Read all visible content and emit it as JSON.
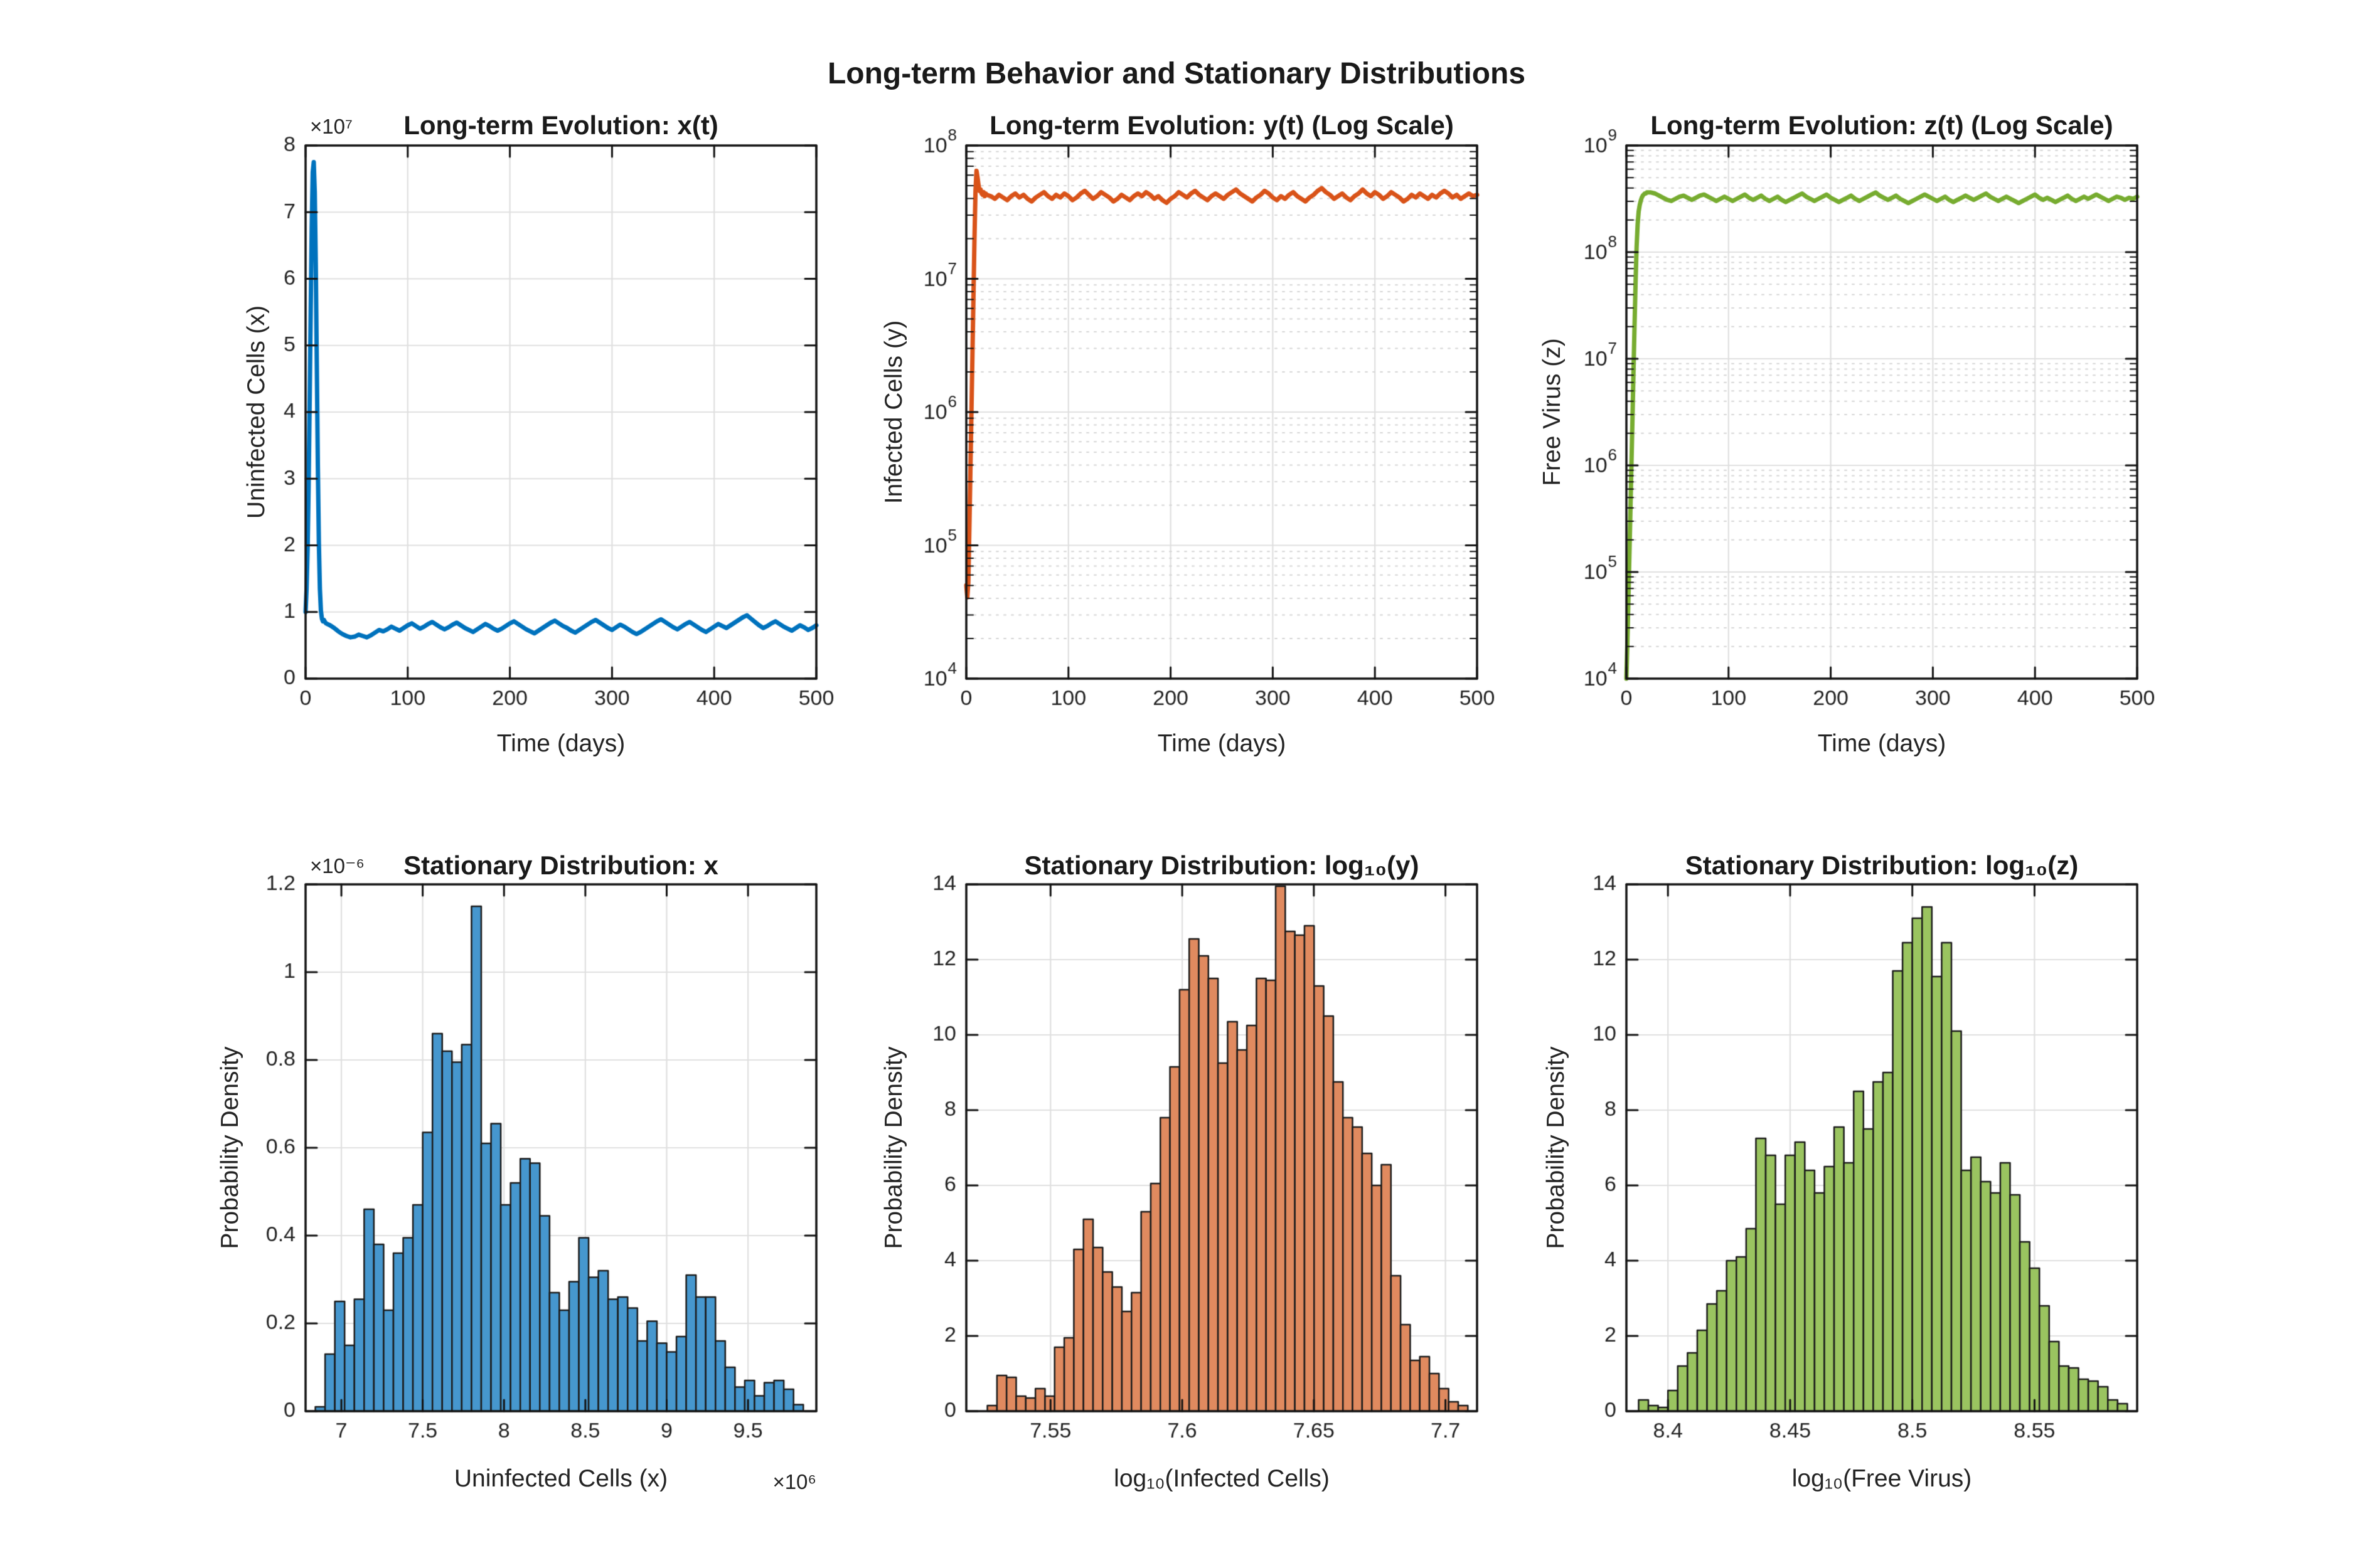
{
  "figure": {
    "title": "Long-term Behavior and Stationary Distributions",
    "background": "#FFFFFF"
  },
  "palette": {
    "blue": "#0072BD",
    "orange": "#D95319",
    "green": "#77AC30",
    "blue_fill": "#4697CE",
    "orange_fill": "#E08A5F",
    "green_fill": "#9AC460",
    "edge": "#1C1C1C",
    "grid": "#E0E0E0",
    "grid_minor": "#D6D6D6",
    "spine": "#141414",
    "text": "#242424"
  },
  "time_days": [
    0,
    1,
    2,
    3,
    4,
    5,
    6,
    7,
    8,
    9,
    10,
    11,
    12,
    13,
    14,
    15,
    16,
    17,
    18,
    19,
    20,
    24,
    28,
    32,
    36,
    40,
    44,
    48,
    52,
    56,
    60,
    64,
    68,
    72,
    76,
    80,
    84,
    88,
    92,
    96,
    100,
    104,
    108,
    112,
    116,
    120,
    124,
    128,
    132,
    136,
    140,
    144,
    148,
    152,
    156,
    160,
    164,
    168,
    172,
    176,
    180,
    184,
    188,
    192,
    196,
    200,
    204,
    208,
    212,
    216,
    220,
    224,
    228,
    232,
    236,
    240,
    244,
    248,
    252,
    256,
    260,
    264,
    268,
    272,
    276,
    280,
    284,
    288,
    292,
    296,
    300,
    304,
    308,
    312,
    316,
    320,
    324,
    328,
    332,
    336,
    340,
    344,
    348,
    352,
    356,
    360,
    364,
    368,
    372,
    376,
    380,
    384,
    388,
    392,
    396,
    400,
    404,
    408,
    412,
    416,
    420,
    424,
    428,
    432,
    436,
    440,
    444,
    448,
    452,
    456,
    460,
    464,
    468,
    472,
    476,
    480,
    484,
    488,
    492,
    496,
    500
  ],
  "chart_data": [
    {
      "id": "evolution-x",
      "type": "line",
      "title": "Long-term Evolution: x(t)",
      "xlabel": "Time (days)",
      "ylabel": "Uninfected Cells (x)",
      "y_offset_label": "×10⁷",
      "y_units": "1e7 cells",
      "color_key": "blue",
      "xlim": [
        0,
        500
      ],
      "ylim": [
        0,
        8
      ],
      "xticks": [
        0,
        100,
        200,
        300,
        400,
        500
      ],
      "yticks": [
        0,
        1,
        2,
        3,
        4,
        5,
        6,
        7,
        8
      ],
      "y": [
        1.0,
        1.35,
        1.95,
        2.9,
        4.15,
        5.5,
        6.75,
        7.6,
        7.75,
        7.3,
        6.2,
        4.7,
        3.2,
        2.05,
        1.35,
        1.02,
        0.9,
        0.86,
        0.88,
        0.85,
        0.83,
        0.8,
        0.76,
        0.71,
        0.67,
        0.64,
        0.62,
        0.63,
        0.66,
        0.64,
        0.62,
        0.65,
        0.69,
        0.73,
        0.71,
        0.74,
        0.78,
        0.75,
        0.72,
        0.76,
        0.8,
        0.83,
        0.79,
        0.75,
        0.78,
        0.82,
        0.85,
        0.81,
        0.77,
        0.74,
        0.77,
        0.81,
        0.84,
        0.8,
        0.76,
        0.73,
        0.7,
        0.74,
        0.78,
        0.82,
        0.79,
        0.75,
        0.72,
        0.75,
        0.79,
        0.83,
        0.86,
        0.82,
        0.78,
        0.74,
        0.71,
        0.68,
        0.72,
        0.76,
        0.8,
        0.84,
        0.87,
        0.83,
        0.79,
        0.76,
        0.72,
        0.69,
        0.73,
        0.77,
        0.81,
        0.85,
        0.88,
        0.84,
        0.8,
        0.76,
        0.73,
        0.77,
        0.81,
        0.78,
        0.74,
        0.7,
        0.67,
        0.7,
        0.74,
        0.78,
        0.82,
        0.86,
        0.89,
        0.85,
        0.81,
        0.77,
        0.74,
        0.78,
        0.82,
        0.85,
        0.81,
        0.77,
        0.73,
        0.7,
        0.74,
        0.78,
        0.82,
        0.79,
        0.76,
        0.8,
        0.84,
        0.88,
        0.92,
        0.95,
        0.9,
        0.85,
        0.8,
        0.76,
        0.79,
        0.83,
        0.86,
        0.82,
        0.78,
        0.75,
        0.72,
        0.76,
        0.8,
        0.77,
        0.73,
        0.76,
        0.8
      ]
    },
    {
      "id": "evolution-y",
      "type": "line",
      "yscale": "log10",
      "title": "Long-term Evolution: y(t) (Log Scale)",
      "xlabel": "Time (days)",
      "ylabel": "Infected Cells (y)",
      "y_units": "log10(cells)",
      "color_key": "orange",
      "xlim": [
        0,
        500
      ],
      "ylim": [
        4,
        8
      ],
      "xticks": [
        0,
        100,
        200,
        300,
        400,
        500
      ],
      "ytick_exponents": [
        4,
        5,
        6,
        7,
        8
      ],
      "y": [
        4.7,
        4.61,
        4.72,
        5.12,
        5.55,
        5.98,
        6.42,
        6.86,
        7.3,
        7.66,
        7.81,
        7.76,
        7.7,
        7.66,
        7.67,
        7.64,
        7.63,
        7.65,
        7.62,
        7.64,
        7.63,
        7.62,
        7.6,
        7.63,
        7.61,
        7.59,
        7.62,
        7.64,
        7.61,
        7.63,
        7.6,
        7.58,
        7.61,
        7.63,
        7.65,
        7.62,
        7.6,
        7.63,
        7.61,
        7.64,
        7.62,
        7.59,
        7.61,
        7.64,
        7.66,
        7.63,
        7.6,
        7.62,
        7.65,
        7.63,
        7.61,
        7.58,
        7.6,
        7.63,
        7.61,
        7.59,
        7.62,
        7.64,
        7.62,
        7.65,
        7.63,
        7.6,
        7.62,
        7.59,
        7.57,
        7.6,
        7.62,
        7.65,
        7.63,
        7.61,
        7.64,
        7.66,
        7.63,
        7.61,
        7.59,
        7.62,
        7.64,
        7.62,
        7.6,
        7.63,
        7.65,
        7.67,
        7.64,
        7.62,
        7.6,
        7.58,
        7.61,
        7.63,
        7.66,
        7.64,
        7.61,
        7.59,
        7.62,
        7.6,
        7.63,
        7.65,
        7.62,
        7.6,
        7.58,
        7.61,
        7.63,
        7.66,
        7.68,
        7.65,
        7.63,
        7.6,
        7.62,
        7.64,
        7.61,
        7.59,
        7.62,
        7.64,
        7.67,
        7.64,
        7.62,
        7.65,
        7.63,
        7.6,
        7.62,
        7.65,
        7.63,
        7.61,
        7.58,
        7.6,
        7.63,
        7.61,
        7.64,
        7.62,
        7.6,
        7.63,
        7.61,
        7.64,
        7.66,
        7.64,
        7.61,
        7.63,
        7.6,
        7.62,
        7.64,
        7.62,
        7.63
      ]
    },
    {
      "id": "evolution-z",
      "type": "line",
      "yscale": "log10",
      "title": "Long-term Evolution: z(t) (Log Scale)",
      "xlabel": "Time (days)",
      "ylabel": "Free Virus (z)",
      "y_units": "log10(virions)",
      "color_key": "green",
      "xlim": [
        0,
        500
      ],
      "ylim": [
        4,
        9
      ],
      "xticks": [
        0,
        100,
        200,
        300,
        400,
        500
      ],
      "ytick_exponents": [
        4,
        5,
        6,
        7,
        8,
        9
      ],
      "y": [
        4.0,
        4.35,
        4.75,
        5.18,
        5.6,
        6.03,
        6.46,
        6.9,
        7.32,
        7.72,
        8.05,
        8.26,
        8.38,
        8.44,
        8.48,
        8.51,
        8.53,
        8.54,
        8.55,
        8.55,
        8.56,
        8.56,
        8.55,
        8.53,
        8.51,
        8.49,
        8.48,
        8.5,
        8.52,
        8.53,
        8.51,
        8.49,
        8.51,
        8.53,
        8.54,
        8.52,
        8.5,
        8.48,
        8.5,
        8.52,
        8.5,
        8.48,
        8.5,
        8.52,
        8.54,
        8.51,
        8.49,
        8.51,
        8.53,
        8.5,
        8.48,
        8.5,
        8.52,
        8.49,
        8.47,
        8.49,
        8.51,
        8.53,
        8.55,
        8.52,
        8.5,
        8.48,
        8.5,
        8.52,
        8.54,
        8.51,
        8.49,
        8.47,
        8.49,
        8.51,
        8.53,
        8.5,
        8.48,
        8.5,
        8.52,
        8.54,
        8.56,
        8.53,
        8.51,
        8.49,
        8.51,
        8.53,
        8.5,
        8.48,
        8.46,
        8.48,
        8.5,
        8.52,
        8.54,
        8.52,
        8.5,
        8.48,
        8.5,
        8.52,
        8.49,
        8.47,
        8.49,
        8.51,
        8.53,
        8.51,
        8.49,
        8.51,
        8.53,
        8.55,
        8.52,
        8.5,
        8.48,
        8.5,
        8.52,
        8.5,
        8.48,
        8.46,
        8.48,
        8.5,
        8.52,
        8.54,
        8.51,
        8.49,
        8.51,
        8.49,
        8.47,
        8.49,
        8.51,
        8.53,
        8.5,
        8.48,
        8.5,
        8.52,
        8.5,
        8.52,
        8.54,
        8.52,
        8.5,
        8.48,
        8.5,
        8.52,
        8.51,
        8.49,
        8.51,
        8.5,
        8.52
      ]
    },
    {
      "id": "hist-x",
      "type": "histogram",
      "title": "Stationary Distribution: x",
      "xlabel": "Uninfected Cells (x)",
      "ylabel": "Probability Density",
      "y_offset_label": "×10⁻⁶",
      "x_offset_label": "×10⁶",
      "color_key": "blue",
      "bin_start": 6.84,
      "bin_width": 0.06,
      "xlim": [
        6.78,
        9.92
      ],
      "ylim": [
        0,
        1.2
      ],
      "xticks": [
        7,
        7.5,
        8,
        8.5,
        9,
        9.5
      ],
      "yticks": [
        0,
        0.2,
        0.4,
        0.6,
        0.8,
        1,
        1.2
      ],
      "heights": [
        0.01,
        0.13,
        0.25,
        0.15,
        0.255,
        0.46,
        0.38,
        0.23,
        0.36,
        0.395,
        0.47,
        0.635,
        0.86,
        0.82,
        0.795,
        0.835,
        1.15,
        0.61,
        0.655,
        0.47,
        0.52,
        0.575,
        0.565,
        0.445,
        0.27,
        0.23,
        0.295,
        0.395,
        0.305,
        0.32,
        0.255,
        0.26,
        0.235,
        0.16,
        0.205,
        0.155,
        0.135,
        0.17,
        0.31,
        0.26,
        0.26,
        0.16,
        0.1,
        0.055,
        0.07,
        0.035,
        0.065,
        0.07,
        0.05,
        0.015
      ]
    },
    {
      "id": "hist-y",
      "type": "histogram",
      "title": "Stationary Distribution: log₁₀(y)",
      "xlabel": "log₁₀(Infected Cells)",
      "ylabel": "Probability Density",
      "color_key": "orange",
      "bin_start": 7.526,
      "bin_width": 0.00365,
      "xlim": [
        7.518,
        7.712
      ],
      "ylim": [
        0,
        14
      ],
      "xticks": [
        7.55,
        7.6,
        7.65,
        7.7
      ],
      "yticks": [
        0,
        2,
        4,
        6,
        8,
        10,
        12,
        14
      ],
      "heights": [
        0.15,
        0.95,
        0.9,
        0.4,
        0.35,
        0.6,
        0.4,
        1.7,
        1.95,
        4.3,
        5.1,
        4.35,
        3.7,
        3.3,
        2.65,
        3.15,
        5.3,
        6.05,
        7.8,
        9.15,
        11.2,
        12.55,
        12.1,
        11.5,
        9.25,
        10.35,
        9.6,
        10.25,
        11.5,
        11.45,
        13.95,
        12.75,
        12.65,
        12.9,
        11.3,
        10.5,
        8.75,
        7.8,
        7.55,
        6.85,
        6.0,
        6.55,
        3.6,
        2.3,
        1.35,
        1.45,
        1.0,
        0.6,
        0.25,
        0.15
      ]
    },
    {
      "id": "hist-z",
      "type": "histogram",
      "title": "Stationary Distribution: log₁₀(z)",
      "xlabel": "log₁₀(Free Virus)",
      "ylabel": "Probability Density",
      "color_key": "green",
      "bin_start": 8.388,
      "bin_width": 0.004,
      "xlim": [
        8.383,
        8.592
      ],
      "ylim": [
        0,
        14
      ],
      "xticks": [
        8.4,
        8.45,
        8.5,
        8.55
      ],
      "yticks": [
        0,
        2,
        4,
        6,
        8,
        10,
        12,
        14
      ],
      "heights": [
        0.3,
        0.15,
        0.1,
        0.55,
        1.2,
        1.55,
        2.15,
        2.85,
        3.2,
        4.0,
        4.1,
        4.85,
        7.25,
        6.8,
        5.5,
        6.8,
        7.15,
        6.4,
        5.8,
        6.5,
        7.55,
        6.6,
        8.5,
        7.5,
        8.75,
        9.0,
        11.7,
        12.45,
        13.1,
        13.4,
        11.55,
        12.45,
        10.1,
        6.4,
        6.75,
        6.1,
        5.8,
        6.6,
        5.75,
        4.5,
        3.8,
        2.8,
        1.85,
        1.2,
        1.15,
        0.85,
        0.8,
        0.65,
        0.3,
        0.2
      ]
    }
  ]
}
